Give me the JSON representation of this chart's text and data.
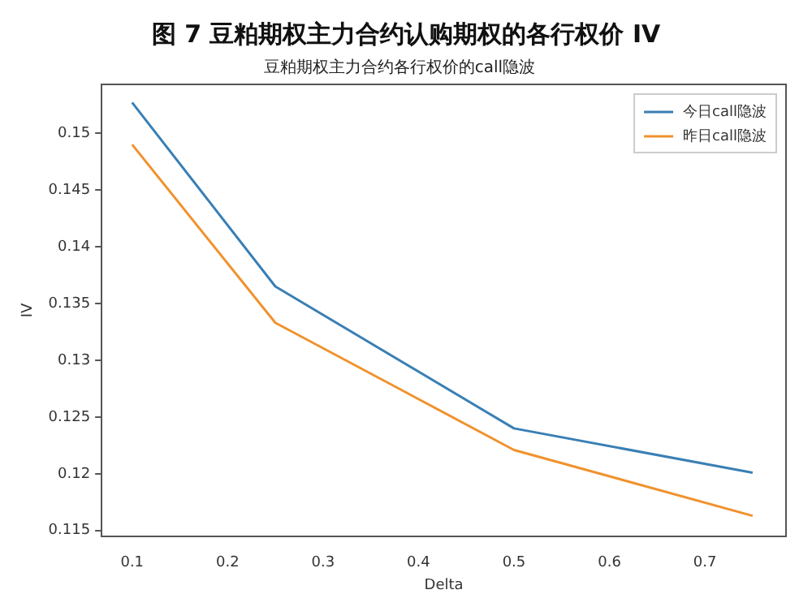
{
  "chart_data": {
    "type": "line",
    "title": "图 7 豆粕期权主力合约认购期权的各行权价 IV",
    "subtitle": "豆粕期权主力合约各行权价的call隐波",
    "xlabel": "Delta",
    "ylabel": "IV",
    "x": [
      0.1,
      0.25,
      0.5,
      0.75
    ],
    "series": [
      {
        "name": "今日call隐波",
        "color": "#3a7fb4",
        "values": [
          0.1527,
          0.1365,
          0.124,
          0.1201
        ]
      },
      {
        "name": "昨日call隐波",
        "color": "#f0922e",
        "values": [
          0.149,
          0.1333,
          0.1221,
          0.1163
        ]
      }
    ],
    "xlim": [
      0.068,
      0.785
    ],
    "xticks": [
      0.1,
      0.2,
      0.3,
      0.4,
      0.5,
      0.6,
      0.7
    ],
    "ylim": [
      0.1145,
      0.1543
    ],
    "yticks": [
      0.115,
      0.12,
      0.125,
      0.13,
      0.135,
      0.14,
      0.145,
      0.15
    ],
    "grid": false,
    "legend": "top right",
    "marker": "none",
    "line_style": "solid"
  }
}
